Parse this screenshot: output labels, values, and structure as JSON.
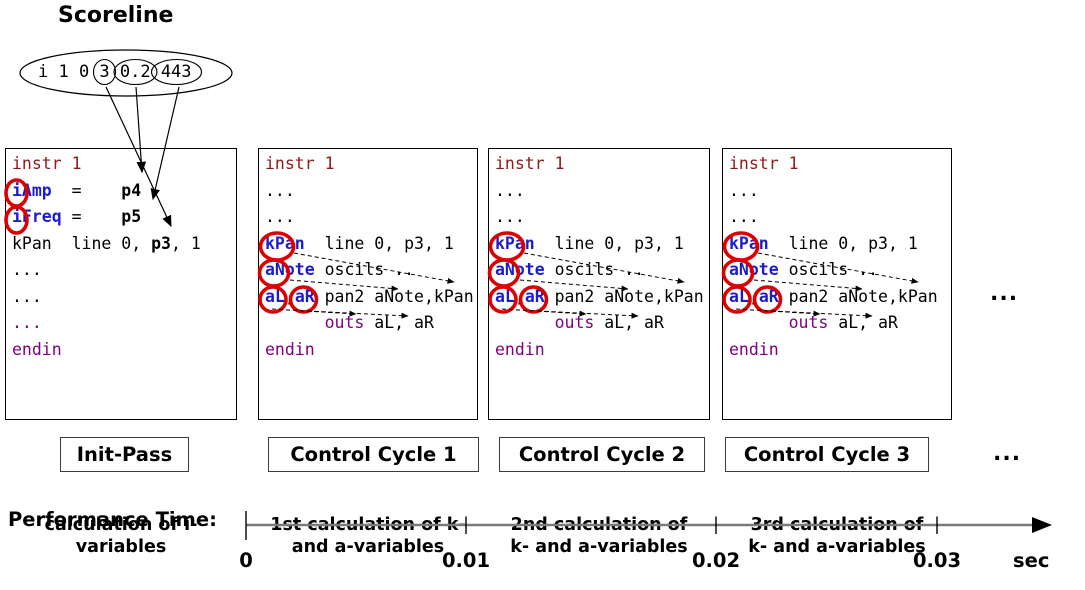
{
  "title": "Scoreline",
  "scoreline": {
    "text": "i 1 0 3 0.2 443",
    "circled_tokens": [
      "3",
      "0.2",
      "443"
    ]
  },
  "boxes": [
    {
      "label": "Init-Pass",
      "caption": [
        "calculation of i-",
        "variables"
      ],
      "lines": [
        [
          {
            "t": "instr 1",
            "c": "maroon"
          }
        ],
        [
          {
            "t": "iAmp",
            "c": "blue",
            "b": 1
          },
          {
            "t": "  =    ",
            "c": "black"
          },
          {
            "t": "p4",
            "c": "black",
            "b": 1
          }
        ],
        [
          {
            "t": "iFreq",
            "c": "blue",
            "b": 1
          },
          {
            "t": " =    ",
            "c": "black"
          },
          {
            "t": "p5",
            "c": "black",
            "b": 1
          }
        ],
        [
          {
            "t": "kPan  line 0, ",
            "c": "black"
          },
          {
            "t": "p3",
            "c": "black",
            "b": 1
          },
          {
            "t": ", 1",
            "c": "black"
          }
        ],
        [
          {
            "t": "...",
            "c": "black"
          }
        ],
        [
          {
            "t": "...",
            "c": "black"
          }
        ],
        [
          {
            "t": "...",
            "c": "purple"
          }
        ],
        [
          {
            "t": "endin",
            "c": "purple"
          }
        ]
      ]
    },
    {
      "label": "Control Cycle 1",
      "caption": [
        "1st calculation of k-",
        "and a-variables"
      ],
      "lines": [
        [
          {
            "t": "instr 1",
            "c": "maroon"
          }
        ],
        [
          {
            "t": "...",
            "c": "black"
          }
        ],
        [
          {
            "t": "...",
            "c": "black"
          }
        ],
        [
          {
            "t": "kPan",
            "c": "blue",
            "b": 1
          },
          {
            "t": "  line 0, p3, 1",
            "c": "black"
          }
        ],
        [
          {
            "t": "aNote",
            "c": "blue",
            "b": 1
          },
          {
            "t": " oscils ..",
            "c": "black"
          }
        ],
        [
          {
            "t": "aL",
            "c": "blue",
            "b": 1
          },
          {
            "t": ",",
            "c": "black"
          },
          {
            "t": "aR",
            "c": "blue",
            "b": 1
          },
          {
            "t": " pan2 aNote,kPan",
            "c": "black"
          }
        ],
        [
          {
            "t": "      ",
            "c": "black"
          },
          {
            "t": "outs",
            "c": "purple"
          },
          {
            "t": " aL, aR",
            "c": "black"
          }
        ],
        [
          {
            "t": "endin",
            "c": "purple"
          }
        ]
      ]
    },
    {
      "label": "Control Cycle 2",
      "caption": [
        "2nd calculation of",
        "k- and a-variables"
      ],
      "lines": [
        [
          {
            "t": "instr 1",
            "c": "maroon"
          }
        ],
        [
          {
            "t": "...",
            "c": "black"
          }
        ],
        [
          {
            "t": "...",
            "c": "black"
          }
        ],
        [
          {
            "t": "kPan",
            "c": "blue",
            "b": 1
          },
          {
            "t": "  line 0, p3, 1",
            "c": "black"
          }
        ],
        [
          {
            "t": "aNote",
            "c": "blue",
            "b": 1
          },
          {
            "t": " oscils ..",
            "c": "black"
          }
        ],
        [
          {
            "t": "aL",
            "c": "blue",
            "b": 1
          },
          {
            "t": ",",
            "c": "black"
          },
          {
            "t": "aR",
            "c": "blue",
            "b": 1
          },
          {
            "t": " pan2 aNote,kPan",
            "c": "black"
          }
        ],
        [
          {
            "t": "      ",
            "c": "black"
          },
          {
            "t": "outs",
            "c": "purple"
          },
          {
            "t": " aL, aR",
            "c": "black"
          }
        ],
        [
          {
            "t": "endin",
            "c": "purple"
          }
        ]
      ]
    },
    {
      "label": "Control Cycle 3",
      "caption": [
        "3rd calculation of",
        "k- and a-variables"
      ],
      "lines": [
        [
          {
            "t": "instr 1",
            "c": "maroon"
          }
        ],
        [
          {
            "t": "...",
            "c": "black"
          }
        ],
        [
          {
            "t": "...",
            "c": "black"
          }
        ],
        [
          {
            "t": "kPan",
            "c": "blue",
            "b": 1
          },
          {
            "t": "  line 0, p3, 1",
            "c": "black"
          }
        ],
        [
          {
            "t": "aNote",
            "c": "blue",
            "b": 1
          },
          {
            "t": " oscils ..",
            "c": "black"
          }
        ],
        [
          {
            "t": "aL",
            "c": "blue",
            "b": 1
          },
          {
            "t": ",",
            "c": "black"
          },
          {
            "t": "aR",
            "c": "blue",
            "b": 1
          },
          {
            "t": " pan2 aNote,kPan",
            "c": "black"
          }
        ],
        [
          {
            "t": "      ",
            "c": "black"
          },
          {
            "t": "outs",
            "c": "purple"
          },
          {
            "t": " aL, aR",
            "c": "black"
          }
        ],
        [
          {
            "t": "endin",
            "c": "purple"
          }
        ]
      ]
    }
  ],
  "ellipsis_after_code": "...",
  "ellipsis_after_labels": "...",
  "timeline": {
    "label": "Performance Time:",
    "ticks": [
      "0",
      "0.01",
      "0.02",
      "0.03"
    ],
    "unit": "sec"
  },
  "colors": {
    "maroon": "#8b1a1a",
    "blue": "#1c1ccd",
    "purple": "#800080",
    "black": "#000000",
    "circle_red": "#dd0000",
    "timeline_gray": "#7a7a7a"
  }
}
